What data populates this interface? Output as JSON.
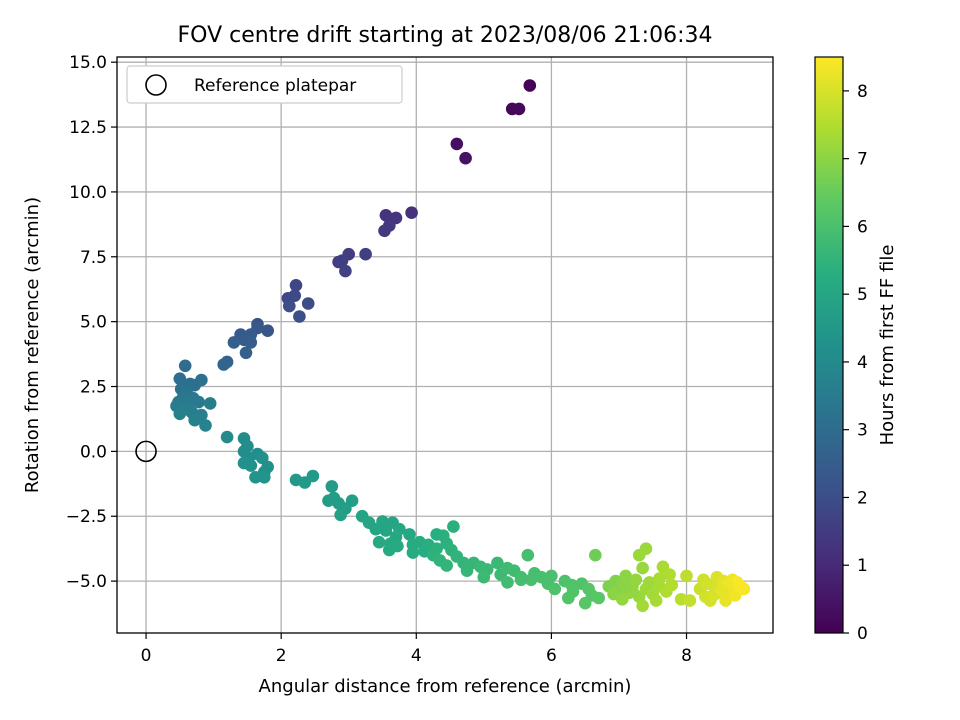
{
  "chart_data": {
    "type": "scatter",
    "title": "FOV centre drift starting at 2023/08/06 21:06:34",
    "xlabel": "Angular distance from reference (arcmin)",
    "ylabel": "Rotation from reference (arcmin)",
    "xlim": [
      -0.43,
      9.28
    ],
    "ylim": [
      -7.0,
      15.2
    ],
    "xticks": [
      0,
      2,
      4,
      6,
      8
    ],
    "yticks": [
      -5.0,
      -2.5,
      0.0,
      2.5,
      5.0,
      7.5,
      10.0,
      12.5,
      15.0
    ],
    "xtick_labels": [
      "0",
      "2",
      "4",
      "6",
      "8"
    ],
    "ytick_labels": [
      "−5.0",
      "−2.5",
      "0.0",
      "2.5",
      "5.0",
      "7.5",
      "10.0",
      "12.5",
      "15.0"
    ],
    "grid": true,
    "legend": {
      "placement": "upper-left",
      "label": "Reference platepar"
    },
    "reference_point": {
      "x": 0.0,
      "y": 0.0
    },
    "colorbar": {
      "label": "Hours from first FF file",
      "range": [
        0,
        8.5
      ],
      "ticks": [
        0,
        1,
        2,
        3,
        4,
        5,
        6,
        7,
        8
      ],
      "tick_labels": [
        "0",
        "1",
        "2",
        "3",
        "4",
        "5",
        "6",
        "7",
        "8"
      ],
      "colormap": "viridis"
    },
    "points": [
      {
        "x": 5.68,
        "y": 14.1,
        "h": 0.05
      },
      {
        "x": 5.42,
        "y": 13.2,
        "h": 0.15
      },
      {
        "x": 5.52,
        "y": 13.2,
        "h": 0.2
      },
      {
        "x": 4.6,
        "y": 11.85,
        "h": 0.35
      },
      {
        "x": 4.73,
        "y": 11.3,
        "h": 0.45
      },
      {
        "x": 3.93,
        "y": 9.2,
        "h": 1.2
      },
      {
        "x": 3.55,
        "y": 9.1,
        "h": 1.25
      },
      {
        "x": 3.7,
        "y": 9.0,
        "h": 1.3
      },
      {
        "x": 3.6,
        "y": 8.7,
        "h": 1.35
      },
      {
        "x": 3.53,
        "y": 8.5,
        "h": 1.4
      },
      {
        "x": 3.0,
        "y": 7.6,
        "h": 1.5
      },
      {
        "x": 2.85,
        "y": 7.3,
        "h": 1.55
      },
      {
        "x": 3.25,
        "y": 7.6,
        "h": 1.6
      },
      {
        "x": 2.95,
        "y": 6.95,
        "h": 1.65
      },
      {
        "x": 2.9,
        "y": 7.35,
        "h": 1.6
      },
      {
        "x": 2.22,
        "y": 6.4,
        "h": 1.8
      },
      {
        "x": 2.1,
        "y": 5.9,
        "h": 1.85
      },
      {
        "x": 2.2,
        "y": 6.0,
        "h": 1.9
      },
      {
        "x": 2.4,
        "y": 5.7,
        "h": 1.95
      },
      {
        "x": 2.12,
        "y": 5.6,
        "h": 2.0
      },
      {
        "x": 2.27,
        "y": 5.2,
        "h": 2.05
      },
      {
        "x": 1.65,
        "y": 4.9,
        "h": 2.2
      },
      {
        "x": 1.8,
        "y": 4.65,
        "h": 2.25
      },
      {
        "x": 1.65,
        "y": 4.75,
        "h": 2.3
      },
      {
        "x": 1.55,
        "y": 4.5,
        "h": 2.35
      },
      {
        "x": 1.4,
        "y": 4.5,
        "h": 2.4
      },
      {
        "x": 1.45,
        "y": 4.3,
        "h": 2.45
      },
      {
        "x": 1.55,
        "y": 4.2,
        "h": 2.5
      },
      {
        "x": 1.3,
        "y": 4.2,
        "h": 2.55
      },
      {
        "x": 1.48,
        "y": 3.8,
        "h": 2.6
      },
      {
        "x": 1.2,
        "y": 3.45,
        "h": 2.7
      },
      {
        "x": 1.15,
        "y": 3.35,
        "h": 2.75
      },
      {
        "x": 0.58,
        "y": 3.3,
        "h": 3.0
      },
      {
        "x": 0.5,
        "y": 2.8,
        "h": 3.05
      },
      {
        "x": 0.65,
        "y": 2.6,
        "h": 3.1
      },
      {
        "x": 0.72,
        "y": 2.55,
        "h": 3.1
      },
      {
        "x": 0.82,
        "y": 2.75,
        "h": 3.15
      },
      {
        "x": 0.52,
        "y": 2.4,
        "h": 3.2
      },
      {
        "x": 0.6,
        "y": 2.3,
        "h": 3.25
      },
      {
        "x": 0.55,
        "y": 2.1,
        "h": 3.3
      },
      {
        "x": 0.7,
        "y": 2.05,
        "h": 3.35
      },
      {
        "x": 0.48,
        "y": 1.9,
        "h": 3.4
      },
      {
        "x": 0.6,
        "y": 1.95,
        "h": 3.4
      },
      {
        "x": 0.78,
        "y": 1.9,
        "h": 3.45
      },
      {
        "x": 0.45,
        "y": 1.75,
        "h": 3.5
      },
      {
        "x": 0.62,
        "y": 1.75,
        "h": 3.5
      },
      {
        "x": 0.95,
        "y": 1.85,
        "h": 3.55
      },
      {
        "x": 0.55,
        "y": 1.6,
        "h": 3.6
      },
      {
        "x": 0.68,
        "y": 1.5,
        "h": 3.6
      },
      {
        "x": 0.82,
        "y": 1.4,
        "h": 3.65
      },
      {
        "x": 0.5,
        "y": 1.45,
        "h": 3.7
      },
      {
        "x": 0.72,
        "y": 1.2,
        "h": 3.7
      },
      {
        "x": 0.88,
        "y": 1.0,
        "h": 3.75
      },
      {
        "x": 1.2,
        "y": 0.55,
        "h": 4.0
      },
      {
        "x": 1.45,
        "y": 0.5,
        "h": 4.05
      },
      {
        "x": 1.5,
        "y": 0.2,
        "h": 4.1
      },
      {
        "x": 1.45,
        "y": 0.0,
        "h": 4.1
      },
      {
        "x": 1.65,
        "y": -0.1,
        "h": 4.15
      },
      {
        "x": 1.52,
        "y": -0.25,
        "h": 4.15
      },
      {
        "x": 1.72,
        "y": -0.25,
        "h": 4.2
      },
      {
        "x": 1.45,
        "y": -0.45,
        "h": 4.2
      },
      {
        "x": 1.55,
        "y": -0.55,
        "h": 4.25
      },
      {
        "x": 1.8,
        "y": -0.6,
        "h": 4.3
      },
      {
        "x": 1.75,
        "y": -0.8,
        "h": 4.3
      },
      {
        "x": 1.62,
        "y": -1.0,
        "h": 4.35
      },
      {
        "x": 1.75,
        "y": -1.0,
        "h": 4.35
      },
      {
        "x": 2.22,
        "y": -1.1,
        "h": 4.5
      },
      {
        "x": 2.35,
        "y": -1.2,
        "h": 4.55
      },
      {
        "x": 2.47,
        "y": -0.95,
        "h": 4.55
      },
      {
        "x": 2.75,
        "y": -1.35,
        "h": 4.6
      },
      {
        "x": 2.78,
        "y": -1.8,
        "h": 4.65
      },
      {
        "x": 2.7,
        "y": -1.9,
        "h": 4.7
      },
      {
        "x": 2.85,
        "y": -2.0,
        "h": 4.7
      },
      {
        "x": 3.05,
        "y": -1.9,
        "h": 4.75
      },
      {
        "x": 2.95,
        "y": -2.2,
        "h": 4.75
      },
      {
        "x": 2.88,
        "y": -2.45,
        "h": 4.8
      },
      {
        "x": 3.2,
        "y": -2.5,
        "h": 4.9
      },
      {
        "x": 3.3,
        "y": -2.75,
        "h": 4.95
      },
      {
        "x": 3.5,
        "y": -2.7,
        "h": 4.95
      },
      {
        "x": 3.65,
        "y": -2.75,
        "h": 5.0
      },
      {
        "x": 3.4,
        "y": -3.0,
        "h": 5.0
      },
      {
        "x": 3.55,
        "y": -3.05,
        "h": 5.0
      },
      {
        "x": 3.75,
        "y": -3.0,
        "h": 5.05
      },
      {
        "x": 3.9,
        "y": -3.2,
        "h": 5.05
      },
      {
        "x": 3.7,
        "y": -3.3,
        "h": 5.1
      },
      {
        "x": 3.45,
        "y": -3.5,
        "h": 5.1
      },
      {
        "x": 3.62,
        "y": -3.55,
        "h": 5.1
      },
      {
        "x": 3.72,
        "y": -3.65,
        "h": 5.15
      },
      {
        "x": 3.6,
        "y": -3.8,
        "h": 5.15
      },
      {
        "x": 3.95,
        "y": -3.6,
        "h": 5.2
      },
      {
        "x": 4.05,
        "y": -3.5,
        "h": 5.2
      },
      {
        "x": 3.95,
        "y": -3.9,
        "h": 5.2
      },
      {
        "x": 4.12,
        "y": -3.85,
        "h": 5.25
      },
      {
        "x": 4.18,
        "y": -3.6,
        "h": 5.3
      },
      {
        "x": 4.3,
        "y": -3.2,
        "h": 5.3
      },
      {
        "x": 4.4,
        "y": -3.25,
        "h": 5.35
      },
      {
        "x": 4.55,
        "y": -2.9,
        "h": 5.35
      },
      {
        "x": 4.3,
        "y": -3.75,
        "h": 5.4
      },
      {
        "x": 4.45,
        "y": -3.55,
        "h": 5.4
      },
      {
        "x": 4.52,
        "y": -3.8,
        "h": 5.45
      },
      {
        "x": 4.25,
        "y": -4.0,
        "h": 5.45
      },
      {
        "x": 4.35,
        "y": -4.2,
        "h": 5.5
      },
      {
        "x": 4.6,
        "y": -4.05,
        "h": 5.5
      },
      {
        "x": 4.7,
        "y": -4.3,
        "h": 5.55
      },
      {
        "x": 4.45,
        "y": -4.4,
        "h": 5.55
      },
      {
        "x": 4.75,
        "y": -4.6,
        "h": 5.6
      },
      {
        "x": 4.85,
        "y": -4.3,
        "h": 5.6
      },
      {
        "x": 4.95,
        "y": -4.45,
        "h": 5.65
      },
      {
        "x": 5.05,
        "y": -4.55,
        "h": 5.7
      },
      {
        "x": 5.2,
        "y": -4.3,
        "h": 5.7
      },
      {
        "x": 5.0,
        "y": -4.85,
        "h": 5.75
      },
      {
        "x": 5.25,
        "y": -4.75,
        "h": 5.75
      },
      {
        "x": 5.35,
        "y": -4.5,
        "h": 5.8
      },
      {
        "x": 5.45,
        "y": -4.6,
        "h": 5.8
      },
      {
        "x": 5.35,
        "y": -5.05,
        "h": 5.85
      },
      {
        "x": 5.55,
        "y": -4.85,
        "h": 5.85
      },
      {
        "x": 5.65,
        "y": -4.0,
        "h": 5.9
      },
      {
        "x": 5.75,
        "y": -4.7,
        "h": 5.9
      },
      {
        "x": 5.7,
        "y": -4.95,
        "h": 5.95
      },
      {
        "x": 5.85,
        "y": -4.85,
        "h": 5.95
      },
      {
        "x": 5.55,
        "y": -4.95,
        "h": 5.9
      },
      {
        "x": 5.95,
        "y": -5.1,
        "h": 6.0
      },
      {
        "x": 6.0,
        "y": -4.8,
        "h": 6.0
      },
      {
        "x": 6.05,
        "y": -5.3,
        "h": 6.05
      },
      {
        "x": 6.2,
        "y": -5.0,
        "h": 6.05
      },
      {
        "x": 6.3,
        "y": -5.15,
        "h": 6.1
      },
      {
        "x": 6.45,
        "y": -5.1,
        "h": 6.1
      },
      {
        "x": 6.32,
        "y": -5.4,
        "h": 6.15
      },
      {
        "x": 6.25,
        "y": -5.65,
        "h": 6.15
      },
      {
        "x": 6.55,
        "y": -5.3,
        "h": 6.2
      },
      {
        "x": 6.6,
        "y": -5.55,
        "h": 6.2
      },
      {
        "x": 6.5,
        "y": -5.85,
        "h": 6.25
      },
      {
        "x": 6.7,
        "y": -5.65,
        "h": 6.25
      },
      {
        "x": 6.65,
        "y": -4.0,
        "h": 6.6
      },
      {
        "x": 6.85,
        "y": -5.2,
        "h": 6.8
      },
      {
        "x": 6.95,
        "y": -5.0,
        "h": 6.85
      },
      {
        "x": 7.0,
        "y": -5.35,
        "h": 6.9
      },
      {
        "x": 7.05,
        "y": -5.05,
        "h": 6.95
      },
      {
        "x": 6.92,
        "y": -5.5,
        "h": 7.0
      },
      {
        "x": 7.1,
        "y": -4.8,
        "h": 7.0
      },
      {
        "x": 7.15,
        "y": -5.45,
        "h": 7.05
      },
      {
        "x": 7.2,
        "y": -5.2,
        "h": 7.05
      },
      {
        "x": 7.25,
        "y": -4.95,
        "h": 7.1
      },
      {
        "x": 7.05,
        "y": -5.7,
        "h": 7.1
      },
      {
        "x": 7.3,
        "y": -5.6,
        "h": 7.15
      },
      {
        "x": 7.35,
        "y": -4.5,
        "h": 7.15
      },
      {
        "x": 7.3,
        "y": -4.0,
        "h": 7.2
      },
      {
        "x": 7.4,
        "y": -3.75,
        "h": 7.2
      },
      {
        "x": 7.4,
        "y": -5.3,
        "h": 7.25
      },
      {
        "x": 7.45,
        "y": -5.05,
        "h": 7.25
      },
      {
        "x": 7.35,
        "y": -5.95,
        "h": 7.3
      },
      {
        "x": 7.5,
        "y": -5.5,
        "h": 7.3
      },
      {
        "x": 7.55,
        "y": -5.75,
        "h": 7.35
      },
      {
        "x": 7.6,
        "y": -5.2,
        "h": 7.35
      },
      {
        "x": 7.65,
        "y": -4.45,
        "h": 7.4
      },
      {
        "x": 7.6,
        "y": -4.9,
        "h": 7.4
      },
      {
        "x": 7.7,
        "y": -5.4,
        "h": 7.45
      },
      {
        "x": 7.75,
        "y": -4.75,
        "h": 7.45
      },
      {
        "x": 7.78,
        "y": -5.15,
        "h": 7.5
      },
      {
        "x": 7.2,
        "y": -5.4,
        "h": 7.1
      },
      {
        "x": 7.1,
        "y": -5.2,
        "h": 7.0
      },
      {
        "x": 7.92,
        "y": -5.7,
        "h": 7.6
      },
      {
        "x": 8.0,
        "y": -4.8,
        "h": 7.65
      },
      {
        "x": 8.05,
        "y": -5.75,
        "h": 7.7
      },
      {
        "x": 8.2,
        "y": -5.3,
        "h": 7.8
      },
      {
        "x": 8.25,
        "y": -4.95,
        "h": 7.85
      },
      {
        "x": 8.28,
        "y": -5.6,
        "h": 7.9
      },
      {
        "x": 8.35,
        "y": -5.75,
        "h": 7.95
      },
      {
        "x": 8.4,
        "y": -5.2,
        "h": 8.0
      },
      {
        "x": 8.45,
        "y": -4.85,
        "h": 8.05
      },
      {
        "x": 8.5,
        "y": -5.45,
        "h": 8.1
      },
      {
        "x": 8.55,
        "y": -5.0,
        "h": 8.15
      },
      {
        "x": 8.58,
        "y": -5.75,
        "h": 8.2
      },
      {
        "x": 8.62,
        "y": -5.3,
        "h": 8.25
      },
      {
        "x": 8.68,
        "y": -4.95,
        "h": 8.3
      },
      {
        "x": 8.72,
        "y": -5.55,
        "h": 8.35
      },
      {
        "x": 8.8,
        "y": -5.2,
        "h": 8.4
      },
      {
        "x": 8.85,
        "y": -5.3,
        "h": 8.45
      },
      {
        "x": 8.75,
        "y": -5.05,
        "h": 8.45
      },
      {
        "x": 8.4,
        "y": -5.55,
        "h": 8.0
      },
      {
        "x": 8.3,
        "y": -5.1,
        "h": 7.95
      },
      {
        "x": 8.6,
        "y": -5.15,
        "h": 8.3
      },
      {
        "x": 8.52,
        "y": -5.35,
        "h": 8.2
      }
    ]
  }
}
